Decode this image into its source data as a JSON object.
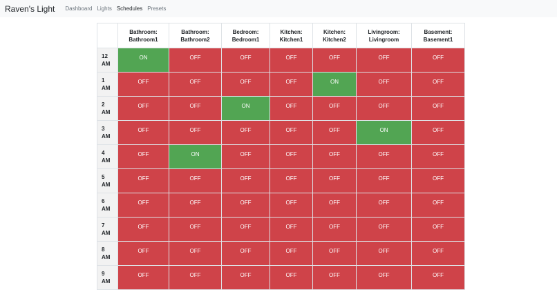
{
  "navbar": {
    "brand": "Raven's Light",
    "links": [
      {
        "label": "Dashboard",
        "active": false
      },
      {
        "label": "Lights",
        "active": false
      },
      {
        "label": "Schedules",
        "active": true
      },
      {
        "label": "Presets",
        "active": false
      }
    ]
  },
  "schedule": {
    "columns": [
      {
        "room": "Bathroom:",
        "light": "Bathroom1"
      },
      {
        "room": "Bathroom:",
        "light": "Bathroom2"
      },
      {
        "room": "Bedroom:",
        "light": "Bedroom1"
      },
      {
        "room": "Kitchen:",
        "light": "Kitchen1"
      },
      {
        "room": "Kitchen:",
        "light": "Kitchen2"
      },
      {
        "room": "Livingroom:",
        "light": "Livingroom"
      },
      {
        "room": "Basement:",
        "light": "Basement1"
      }
    ],
    "rows": [
      {
        "hour": "12",
        "period": "AM",
        "states": [
          "ON",
          "OFF",
          "OFF",
          "OFF",
          "OFF",
          "OFF",
          "OFF"
        ]
      },
      {
        "hour": "1",
        "period": "AM",
        "states": [
          "OFF",
          "OFF",
          "OFF",
          "OFF",
          "ON",
          "OFF",
          "OFF"
        ]
      },
      {
        "hour": "2",
        "period": "AM",
        "states": [
          "OFF",
          "OFF",
          "ON",
          "OFF",
          "OFF",
          "OFF",
          "OFF"
        ]
      },
      {
        "hour": "3",
        "period": "AM",
        "states": [
          "OFF",
          "OFF",
          "OFF",
          "OFF",
          "OFF",
          "ON",
          "OFF"
        ]
      },
      {
        "hour": "4",
        "period": "AM",
        "states": [
          "OFF",
          "ON",
          "OFF",
          "OFF",
          "OFF",
          "OFF",
          "OFF"
        ]
      },
      {
        "hour": "5",
        "period": "AM",
        "states": [
          "OFF",
          "OFF",
          "OFF",
          "OFF",
          "OFF",
          "OFF",
          "OFF"
        ]
      },
      {
        "hour": "6",
        "period": "AM",
        "states": [
          "OFF",
          "OFF",
          "OFF",
          "OFF",
          "OFF",
          "OFF",
          "OFF"
        ]
      },
      {
        "hour": "7",
        "period": "AM",
        "states": [
          "OFF",
          "OFF",
          "OFF",
          "OFF",
          "OFF",
          "OFF",
          "OFF"
        ]
      },
      {
        "hour": "8",
        "period": "AM",
        "states": [
          "OFF",
          "OFF",
          "OFF",
          "OFF",
          "OFF",
          "OFF",
          "OFF"
        ]
      },
      {
        "hour": "9",
        "period": "AM",
        "states": [
          "OFF",
          "OFF",
          "OFF",
          "OFF",
          "OFF",
          "OFF",
          "OFF"
        ]
      }
    ]
  },
  "colors": {
    "on": "#52a553",
    "off": "#cf4349"
  }
}
